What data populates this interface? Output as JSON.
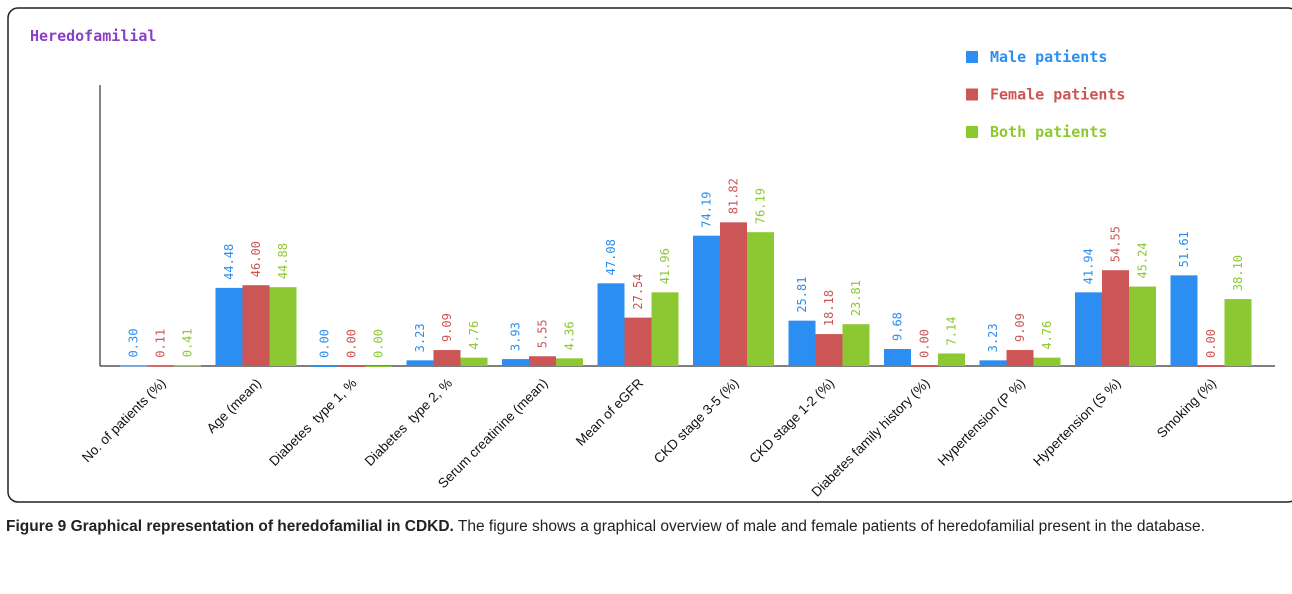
{
  "chart_data": {
    "type": "bar",
    "title": "Heredofamilial",
    "categories": [
      "No. of patients (%)",
      "Age (mean)",
      "Diabetes  type 1, %",
      "Diabetes  type 2, %",
      "Serum creatinine (mean)",
      "Mean of eGFR",
      "CKD stage 3-5 (%)",
      "CKD stage 1-2 (%)",
      "Diabetes family history (%)",
      "Hypertension (P %)",
      "Hypertension (S %)",
      "Smoking (%)"
    ],
    "series": [
      {
        "name": "Male patients",
        "color": "#2b8ef0",
        "values": [
          0.3,
          44.48,
          0.0,
          3.23,
          3.93,
          47.08,
          74.19,
          25.81,
          9.68,
          3.23,
          41.94,
          51.61
        ],
        "value_labels": [
          "0.30",
          "44.48",
          "0.00",
          "3.23",
          "3.93",
          "47.08",
          "74.19",
          "25.81",
          "9.68",
          "3.23",
          "41.94",
          "51.61"
        ]
      },
      {
        "name": "Female patients",
        "color": "#cc5656",
        "values": [
          0.11,
          46.0,
          0.0,
          9.09,
          5.55,
          27.54,
          81.82,
          18.18,
          0.0,
          9.09,
          54.55,
          0.0
        ],
        "value_labels": [
          "0.11",
          "46.00",
          "0.00",
          "9.09",
          "5.55",
          "27.54",
          "81.82",
          "18.18",
          "0.00",
          "9.09",
          "54.55",
          "0.00"
        ]
      },
      {
        "name": "Both patients",
        "color": "#8cc832",
        "values": [
          0.41,
          44.88,
          0.0,
          4.76,
          4.36,
          41.96,
          76.19,
          23.81,
          7.14,
          4.76,
          45.24,
          38.1
        ],
        "value_labels": [
          "0.41",
          "44.88",
          "0.00",
          "4.76",
          "4.36",
          "41.96",
          "76.19",
          "23.81",
          "7.14",
          "4.76",
          "45.24",
          "38.10"
        ]
      }
    ],
    "ylim": [
      0,
      160
    ],
    "legend": "top-right"
  },
  "caption": {
    "label": "Figure 9 Graphical representation of heredofamilial in CDKD.",
    "text": "The figure shows a graphical overview of male and female patients of heredofamilial present in the database."
  }
}
